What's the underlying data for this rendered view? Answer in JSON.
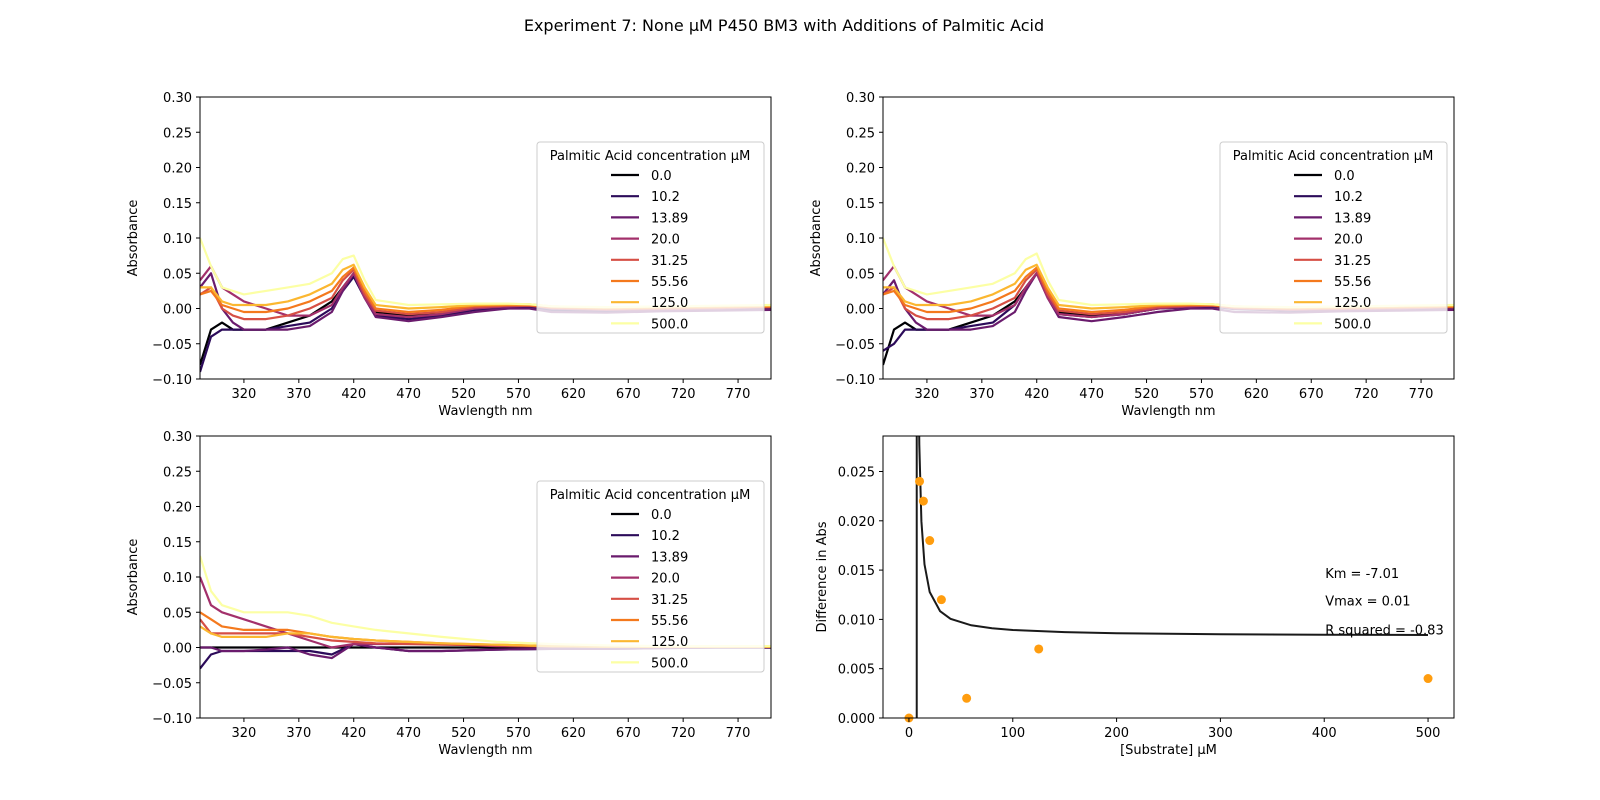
{
  "figure": {
    "title": "Experiment 7: None μM P450 BM3 with Additions of Palmitic Acid"
  },
  "colors": {
    "series": [
      "#000004",
      "#2c0b5a",
      "#6a1b6d",
      "#a3306b",
      "#d64f45",
      "#f4791d",
      "#fbb730",
      "#fcffa4"
    ],
    "fit_line": "#1a1a1a",
    "points": "#ff9d0f",
    "axes": "#000000"
  },
  "chart_data": [
    {
      "type": "line",
      "panel": "top-left",
      "xlabel": "Wavlength nm",
      "ylabel": "Absorbance",
      "xlim": [
        280,
        800
      ],
      "ylim": [
        -0.1,
        0.3
      ],
      "xticks": [
        320,
        370,
        420,
        470,
        520,
        570,
        620,
        670,
        720,
        770
      ],
      "yticks": [
        -0.1,
        -0.05,
        0.0,
        0.05,
        0.1,
        0.15,
        0.2,
        0.25,
        0.3
      ],
      "ytick_labels": [
        "−0.10",
        "−0.05",
        "0.00",
        "0.05",
        "0.10",
        "0.15",
        "0.20",
        "0.25",
        "0.30"
      ],
      "legend": {
        "title": "Palmitic Acid concentration μM",
        "placement": "center-right",
        "labels": [
          "0.0",
          "10.2",
          "13.89",
          "20.0",
          "31.25",
          "55.56",
          "125.0",
          "500.0"
        ]
      },
      "x": [
        280,
        290,
        300,
        310,
        320,
        340,
        360,
        380,
        400,
        410,
        420,
        430,
        440,
        470,
        500,
        530,
        560,
        580,
        600,
        650,
        700,
        750,
        800
      ],
      "series": [
        {
          "name": "0.0",
          "values": [
            -0.08,
            -0.03,
            -0.02,
            -0.03,
            -0.03,
            -0.03,
            -0.02,
            -0.01,
            0.01,
            0.03,
            0.05,
            0.02,
            -0.005,
            -0.01,
            -0.008,
            0.0,
            0.002,
            0.003,
            0.0,
            -0.002,
            -0.002,
            0.0,
            0.002
          ]
        },
        {
          "name": "10.2",
          "values": [
            -0.09,
            -0.04,
            -0.03,
            -0.03,
            -0.03,
            -0.03,
            -0.025,
            -0.02,
            0.0,
            0.025,
            0.045,
            0.015,
            -0.01,
            -0.015,
            -0.01,
            -0.002,
            0.0,
            0.002,
            -0.003,
            -0.005,
            -0.003,
            -0.002,
            0.0
          ]
        },
        {
          "name": "13.89",
          "values": [
            0.03,
            0.05,
            0.0,
            -0.02,
            -0.03,
            -0.03,
            -0.03,
            -0.025,
            -0.005,
            0.025,
            0.05,
            0.015,
            -0.012,
            -0.018,
            -0.012,
            -0.005,
            0.0,
            0.0,
            -0.005,
            -0.006,
            -0.004,
            -0.003,
            -0.002
          ]
        },
        {
          "name": "20.0",
          "values": [
            0.04,
            0.06,
            0.03,
            0.02,
            0.01,
            0.0,
            -0.01,
            -0.01,
            0.005,
            0.03,
            0.05,
            0.015,
            -0.008,
            -0.012,
            -0.008,
            0.0,
            0.003,
            0.004,
            0.0,
            -0.002,
            -0.001,
            0.0,
            0.002
          ]
        },
        {
          "name": "31.25",
          "values": [
            0.02,
            0.03,
            0.0,
            -0.01,
            -0.015,
            -0.015,
            -0.01,
            0.0,
            0.015,
            0.04,
            0.055,
            0.02,
            -0.003,
            -0.008,
            -0.005,
            0.002,
            0.004,
            0.004,
            0.001,
            -0.001,
            0.0,
            0.001,
            0.002
          ]
        },
        {
          "name": "55.56",
          "values": [
            0.02,
            0.025,
            0.005,
            0.0,
            -0.005,
            -0.005,
            0.0,
            0.01,
            0.025,
            0.045,
            0.058,
            0.025,
            0.0,
            -0.005,
            -0.002,
            0.004,
            0.005,
            0.005,
            0.002,
            0.0,
            0.001,
            0.002,
            0.003
          ]
        },
        {
          "name": "125.0",
          "values": [
            0.03,
            0.03,
            0.01,
            0.005,
            0.005,
            0.005,
            0.01,
            0.02,
            0.035,
            0.055,
            0.062,
            0.03,
            0.005,
            0.0,
            0.002,
            0.005,
            0.006,
            0.006,
            0.003,
            0.001,
            0.002,
            0.003,
            0.004
          ]
        },
        {
          "name": "500.0",
          "values": [
            0.1,
            0.06,
            0.03,
            0.025,
            0.02,
            0.025,
            0.03,
            0.035,
            0.05,
            0.07,
            0.075,
            0.04,
            0.012,
            0.005,
            0.006,
            0.007,
            0.007,
            0.006,
            0.003,
            0.002,
            0.003,
            0.004,
            0.005
          ]
        }
      ]
    },
    {
      "type": "line",
      "panel": "top-right",
      "xlabel": "Wavlength nm",
      "ylabel": "Absorbance",
      "xlim": [
        280,
        800
      ],
      "ylim": [
        -0.1,
        0.3
      ],
      "xticks": [
        320,
        370,
        420,
        470,
        520,
        570,
        620,
        670,
        720,
        770
      ],
      "yticks": [
        -0.1,
        -0.05,
        0.0,
        0.05,
        0.1,
        0.15,
        0.2,
        0.25,
        0.3
      ],
      "ytick_labels": [
        "−0.10",
        "−0.05",
        "0.00",
        "0.05",
        "0.10",
        "0.15",
        "0.20",
        "0.25",
        "0.30"
      ],
      "legend": {
        "title": "Palmitic Acid concentration μM",
        "placement": "center-right",
        "labels": [
          "0.0",
          "10.2",
          "13.89",
          "20.0",
          "31.25",
          "55.56",
          "125.0",
          "500.0"
        ]
      },
      "x": [
        280,
        290,
        300,
        310,
        320,
        340,
        360,
        380,
        400,
        410,
        420,
        430,
        440,
        470,
        500,
        530,
        560,
        580,
        600,
        650,
        700,
        750,
        800
      ],
      "series": [
        {
          "name": "0.0",
          "values": [
            -0.08,
            -0.03,
            -0.02,
            -0.03,
            -0.03,
            -0.03,
            -0.02,
            -0.01,
            0.01,
            0.03,
            0.05,
            0.02,
            -0.005,
            -0.01,
            -0.008,
            0.0,
            0.002,
            0.003,
            0.0,
            -0.002,
            -0.002,
            0.0,
            0.002
          ]
        },
        {
          "name": "10.2",
          "values": [
            -0.06,
            -0.05,
            -0.03,
            -0.03,
            -0.03,
            -0.03,
            -0.025,
            -0.02,
            0.005,
            0.03,
            0.05,
            0.018,
            -0.008,
            -0.012,
            -0.008,
            0.0,
            0.002,
            0.003,
            -0.001,
            -0.003,
            -0.002,
            -0.001,
            0.001
          ]
        },
        {
          "name": "13.89",
          "values": [
            0.02,
            0.04,
            0.0,
            -0.02,
            -0.03,
            -0.03,
            -0.03,
            -0.025,
            -0.005,
            0.025,
            0.05,
            0.015,
            -0.012,
            -0.018,
            -0.012,
            -0.005,
            0.0,
            0.0,
            -0.005,
            -0.006,
            -0.004,
            -0.003,
            -0.002
          ]
        },
        {
          "name": "20.0",
          "values": [
            0.04,
            0.06,
            0.03,
            0.02,
            0.01,
            0.0,
            -0.01,
            -0.01,
            0.005,
            0.03,
            0.05,
            0.015,
            -0.008,
            -0.012,
            -0.008,
            0.0,
            0.003,
            0.004,
            0.0,
            -0.002,
            -0.001,
            0.0,
            0.002
          ]
        },
        {
          "name": "31.25",
          "values": [
            0.02,
            0.03,
            0.0,
            -0.01,
            -0.015,
            -0.015,
            -0.01,
            0.0,
            0.015,
            0.04,
            0.055,
            0.02,
            -0.003,
            -0.008,
            -0.005,
            0.002,
            0.004,
            0.004,
            0.001,
            -0.001,
            0.0,
            0.001,
            0.002
          ]
        },
        {
          "name": "55.56",
          "values": [
            0.02,
            0.025,
            0.005,
            0.0,
            -0.005,
            -0.005,
            0.0,
            0.01,
            0.025,
            0.045,
            0.058,
            0.025,
            0.0,
            -0.005,
            -0.002,
            0.004,
            0.005,
            0.005,
            0.002,
            0.0,
            0.001,
            0.002,
            0.003
          ]
        },
        {
          "name": "125.0",
          "values": [
            0.03,
            0.03,
            0.01,
            0.005,
            0.005,
            0.005,
            0.01,
            0.02,
            0.035,
            0.055,
            0.062,
            0.03,
            0.005,
            0.0,
            0.002,
            0.005,
            0.006,
            0.006,
            0.003,
            0.001,
            0.002,
            0.003,
            0.004
          ]
        },
        {
          "name": "500.0",
          "values": [
            0.1,
            0.06,
            0.03,
            0.025,
            0.02,
            0.025,
            0.03,
            0.035,
            0.05,
            0.07,
            0.078,
            0.04,
            0.012,
            0.005,
            0.006,
            0.007,
            0.007,
            0.006,
            0.003,
            0.002,
            0.003,
            0.004,
            0.005
          ]
        }
      ]
    },
    {
      "type": "line",
      "panel": "bottom-left",
      "xlabel": "Wavlength nm",
      "ylabel": "Absorbance",
      "xlim": [
        280,
        800
      ],
      "ylim": [
        -0.1,
        0.3
      ],
      "xticks": [
        320,
        370,
        420,
        470,
        520,
        570,
        620,
        670,
        720,
        770
      ],
      "yticks": [
        -0.1,
        -0.05,
        0.0,
        0.05,
        0.1,
        0.15,
        0.2,
        0.25,
        0.3
      ],
      "ytick_labels": [
        "−0.10",
        "−0.05",
        "0.00",
        "0.05",
        "0.10",
        "0.15",
        "0.20",
        "0.25",
        "0.30"
      ],
      "legend": {
        "title": "Palmitic Acid concentration μM",
        "placement": "center-right",
        "labels": [
          "0.0",
          "10.2",
          "13.89",
          "20.0",
          "31.25",
          "55.56",
          "125.0",
          "500.0"
        ]
      },
      "x": [
        280,
        290,
        300,
        320,
        340,
        360,
        380,
        400,
        420,
        440,
        470,
        500,
        550,
        600,
        650,
        700,
        750,
        800
      ],
      "series": [
        {
          "name": "0.0",
          "values": [
            0.0,
            0.0,
            0.0,
            0.0,
            0.0,
            0.0,
            0.0,
            0.0,
            0.0,
            0.0,
            0.0,
            0.0,
            0.0,
            0.0,
            0.0,
            0.0,
            0.0,
            0.0
          ]
        },
        {
          "name": "10.2",
          "values": [
            -0.03,
            -0.01,
            -0.005,
            -0.005,
            -0.005,
            -0.005,
            -0.005,
            -0.01,
            0.005,
            0.0,
            -0.005,
            -0.005,
            -0.003,
            -0.002,
            -0.002,
            -0.001,
            0.0,
            0.0
          ]
        },
        {
          "name": "13.89",
          "values": [
            0.0,
            0.0,
            -0.005,
            -0.005,
            -0.003,
            0.0,
            -0.01,
            -0.015,
            0.005,
            0.0,
            -0.005,
            -0.005,
            -0.003,
            -0.002,
            -0.002,
            -0.001,
            0.0,
            0.0
          ]
        },
        {
          "name": "20.0",
          "values": [
            0.1,
            0.06,
            0.05,
            0.04,
            0.03,
            0.02,
            0.01,
            0.0,
            0.005,
            0.005,
            0.005,
            0.005,
            0.002,
            0.001,
            0.001,
            0.001,
            0.001,
            0.001
          ]
        },
        {
          "name": "31.25",
          "values": [
            0.04,
            0.02,
            0.02,
            0.02,
            0.02,
            0.02,
            0.015,
            0.01,
            0.008,
            0.006,
            0.005,
            0.004,
            0.003,
            0.002,
            0.001,
            0.001,
            0.001,
            0.001
          ]
        },
        {
          "name": "55.56",
          "values": [
            0.05,
            0.04,
            0.03,
            0.025,
            0.025,
            0.025,
            0.02,
            0.015,
            0.012,
            0.01,
            0.008,
            0.006,
            0.004,
            0.002,
            0.001,
            0.001,
            0.001,
            0.001
          ]
        },
        {
          "name": "125.0",
          "values": [
            0.03,
            0.02,
            0.015,
            0.015,
            0.015,
            0.02,
            0.02,
            0.015,
            0.012,
            0.01,
            0.008,
            0.006,
            0.004,
            0.002,
            0.001,
            0.001,
            0.001,
            0.001
          ]
        },
        {
          "name": "500.0",
          "values": [
            0.13,
            0.08,
            0.06,
            0.05,
            0.05,
            0.05,
            0.045,
            0.035,
            0.03,
            0.025,
            0.02,
            0.015,
            0.008,
            0.005,
            0.003,
            0.002,
            0.002,
            0.002
          ]
        }
      ]
    },
    {
      "type": "scatter",
      "panel": "bottom-right",
      "xlabel": "[Substrate] μM",
      "ylabel": "Difference in Abs",
      "xlim": [
        -25,
        525
      ],
      "ylim": [
        0,
        0.0286
      ],
      "xticks": [
        0,
        100,
        200,
        300,
        400,
        500
      ],
      "yticks": [
        0,
        0.005,
        0.01,
        0.015,
        0.02,
        0.025
      ],
      "ytick_labels": [
        "0.000",
        "0.005",
        "0.010",
        "0.015",
        "0.020",
        "0.025"
      ],
      "points": {
        "x": [
          0.0,
          10.2,
          13.89,
          20.0,
          31.25,
          55.56,
          125.0,
          500.0
        ],
        "y": [
          0.0,
          0.024,
          0.022,
          0.018,
          0.012,
          0.002,
          0.007,
          0.004
        ]
      },
      "fit": {
        "model": "michaelis-menten",
        "km": -7.01,
        "vmax": 0.0083,
        "x": [
          7.3,
          8,
          9,
          10,
          12,
          15,
          20,
          30,
          40,
          60,
          80,
          100,
          150,
          200,
          300,
          400,
          500
        ]
      },
      "annotations": [
        "Km = -7.01",
        "Vmax = 0.01",
        "R squared = -0.83"
      ]
    }
  ]
}
